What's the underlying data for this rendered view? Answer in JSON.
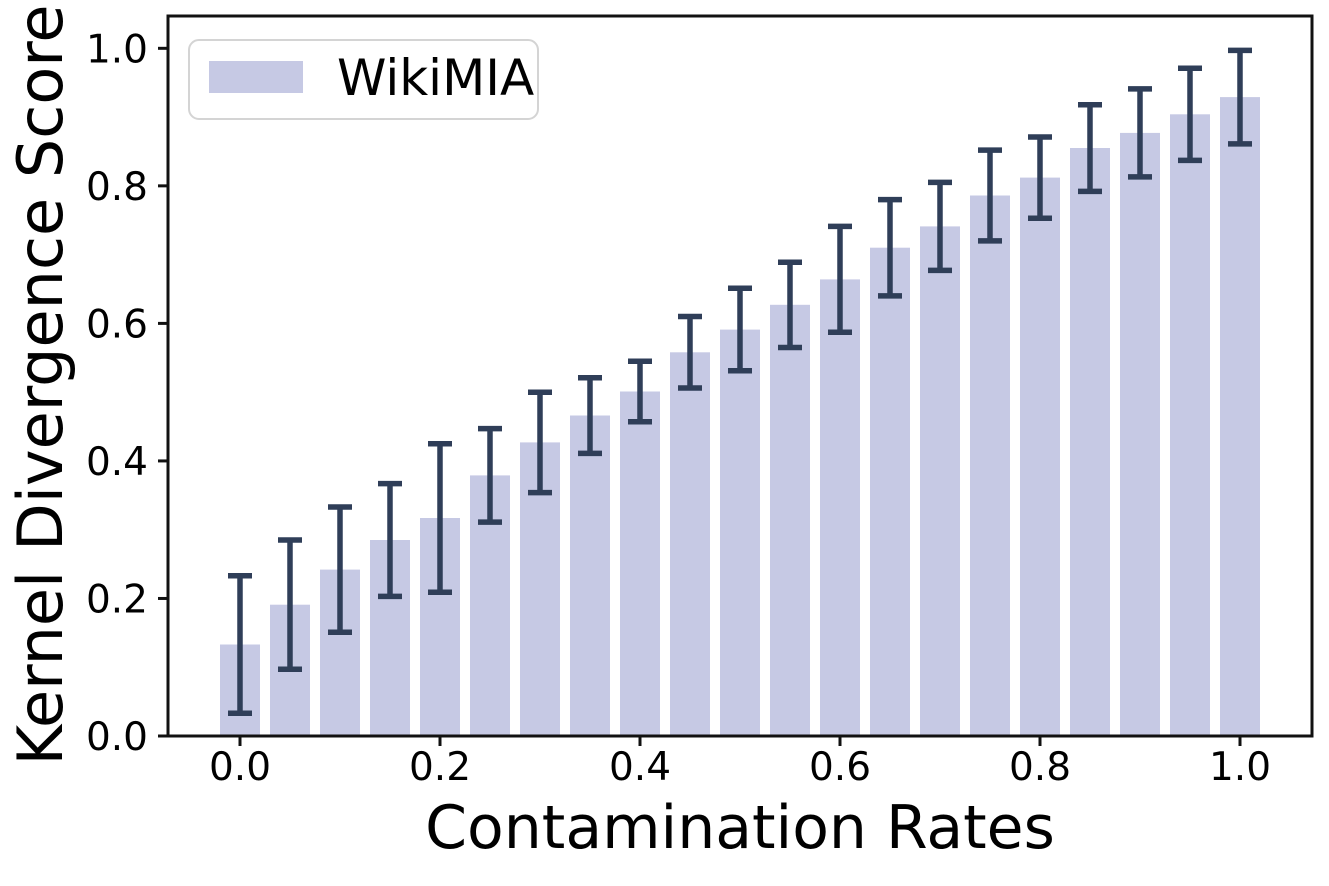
{
  "chart_data": {
    "type": "bar",
    "title": "",
    "xlabel": "Contamination Rates",
    "ylabel": "Kernel Divergence Score",
    "legend": [
      {
        "label": "WikiMIA"
      }
    ],
    "legend_position": "upper left",
    "grid": false,
    "x": [
      0.0,
      0.05,
      0.1,
      0.15,
      0.2,
      0.25,
      0.3,
      0.35,
      0.4,
      0.45,
      0.5,
      0.55,
      0.6,
      0.65,
      0.7,
      0.75,
      0.8,
      0.85,
      0.9,
      0.95,
      1.0
    ],
    "values": [
      0.133,
      0.191,
      0.242,
      0.285,
      0.317,
      0.379,
      0.427,
      0.466,
      0.501,
      0.558,
      0.591,
      0.627,
      0.664,
      0.71,
      0.741,
      0.786,
      0.812,
      0.855,
      0.877,
      0.904,
      0.929
    ],
    "errors": [
      0.1,
      0.094,
      0.091,
      0.082,
      0.108,
      0.068,
      0.073,
      0.055,
      0.044,
      0.052,
      0.06,
      0.062,
      0.077,
      0.07,
      0.064,
      0.066,
      0.059,
      0.063,
      0.064,
      0.067,
      0.068
    ],
    "bar_width_data": 0.04,
    "xtick_labels": [
      "0.0",
      "0.2",
      "0.4",
      "0.6",
      "0.8",
      "1.0"
    ],
    "xtick_values": [
      0.0,
      0.2,
      0.4,
      0.6,
      0.8,
      1.0
    ],
    "ytick_labels": [
      "0.0",
      "0.2",
      "0.4",
      "0.6",
      "0.8",
      "1.0"
    ],
    "ytick_values": [
      0.0,
      0.2,
      0.4,
      0.6,
      0.8,
      1.0
    ],
    "xlim": [
      -0.072,
      1.072
    ],
    "ylim": [
      0,
      1.047
    ],
    "colors": {
      "bar": "#c6c9e4",
      "error": "#2f3e58",
      "axis": "#111111",
      "text": "#000000",
      "legend_border": "#d4d4d4",
      "legend_bg": "#ffffff"
    }
  }
}
